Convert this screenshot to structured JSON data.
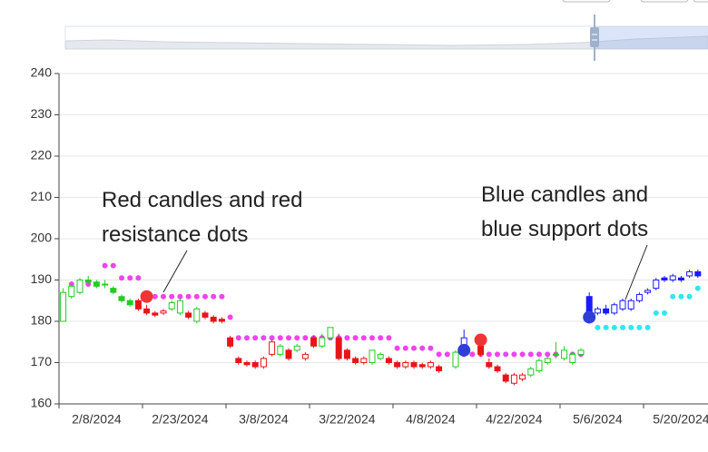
{
  "chart_data": {
    "type": "candlestick",
    "annotations": [
      {
        "lines": [
          "Red candles and red",
          "resistance dots"
        ]
      },
      {
        "lines": [
          "Blue candles and",
          "blue support dots"
        ]
      }
    ],
    "categories": [
      null,
      null,
      null,
      null,
      "2/8/2024",
      null,
      null,
      null,
      null,
      null,
      null,
      null,
      null,
      null,
      "2/23/2024",
      null,
      null,
      null,
      null,
      null,
      null,
      null,
      null,
      null,
      "3/8/2024",
      null,
      null,
      null,
      null,
      null,
      null,
      null,
      null,
      null,
      "3/22/2024",
      null,
      null,
      null,
      null,
      null,
      null,
      null,
      null,
      null,
      "4/8/2024",
      null,
      null,
      null,
      null,
      null,
      null,
      null,
      null,
      null,
      "4/22/2024",
      null,
      null,
      null,
      null,
      null,
      null,
      null,
      null,
      null,
      "5/6/2024",
      null,
      null,
      null,
      null,
      null,
      null,
      null,
      null,
      null,
      "5/20/2024",
      null,
      null
    ],
    "ylim": [
      160,
      240
    ],
    "yticks": [
      160,
      170,
      180,
      190,
      200,
      210,
      220,
      230,
      240
    ],
    "grid": true,
    "series": [
      {
        "color": "#22cc22",
        "values": [
          [
            180,
            187,
            180,
            188
          ],
          [
            186,
            188.5,
            185.5,
            189
          ],
          [
            187,
            190,
            186.5,
            190.5
          ],
          [
            190,
            189.5,
            189,
            191
          ],
          [
            189.5,
            188.5,
            188,
            190
          ],
          [
            189,
            189,
            188,
            190
          ],
          [
            188,
            187,
            186.5,
            188.5
          ],
          [
            186,
            185,
            184.5,
            186.5
          ],
          [
            185,
            184,
            183.5,
            185.5
          ],
          null,
          null,
          null,
          null,
          [
            183,
            184.5,
            182.5,
            185
          ],
          [
            182,
            185,
            181.5,
            185.5
          ],
          null,
          [
            180,
            183,
            179.5,
            183.5
          ],
          null,
          null,
          null,
          null,
          null,
          null,
          null,
          null,
          null,
          [
            172,
            174,
            171.5,
            174.5
          ],
          null,
          [
            173,
            174,
            172.5,
            174.5
          ],
          null,
          null,
          [
            174,
            176,
            173.5,
            177
          ],
          [
            176,
            178.5,
            175.5,
            178.5
          ],
          null,
          null,
          null,
          null,
          [
            170,
            173,
            169.5,
            173
          ],
          [
            171,
            172,
            170.5,
            172.5
          ],
          null,
          null,
          null,
          null,
          null,
          null,
          null,
          null,
          [
            169,
            172.5,
            168.5,
            173
          ],
          null,
          null,
          null,
          null,
          null,
          null,
          null,
          null,
          [
            167,
            168.5,
            166.5,
            169
          ],
          [
            168,
            170.5,
            167.5,
            171
          ],
          [
            170,
            171,
            169.5,
            171.5
          ],
          [
            172,
            172,
            171,
            175
          ],
          [
            171,
            173,
            170.5,
            174
          ],
          [
            170,
            172,
            169.5,
            172.5
          ],
          [
            172,
            173,
            171.5,
            173.5
          ],
          null,
          null,
          null,
          null,
          null,
          null,
          null,
          null,
          null,
          null,
          null,
          null,
          null,
          null
        ]
      },
      {
        "color": "#e8141a",
        "values": [
          null,
          null,
          null,
          null,
          null,
          null,
          null,
          null,
          null,
          [
            185,
            183,
            182.5,
            185.5
          ],
          [
            183,
            182,
            181.5,
            184
          ],
          [
            182,
            181.5,
            181,
            182.5
          ],
          [
            182,
            182.5,
            181.5,
            183
          ],
          null,
          null,
          [
            182,
            181,
            180.5,
            182.5
          ],
          null,
          [
            182,
            181,
            180.5,
            182.5
          ],
          [
            181,
            180,
            179.5,
            181.5
          ],
          [
            180.5,
            180,
            179.5,
            181
          ],
          [
            176,
            174,
            173.5,
            176.5
          ],
          [
            171,
            170,
            169.5,
            171.5
          ],
          [
            170,
            169.5,
            169,
            170.5
          ],
          [
            170,
            169,
            168.5,
            170.5
          ],
          [
            169,
            171,
            168.5,
            171.5
          ],
          [
            172,
            175,
            171.5,
            175.5
          ],
          null,
          [
            173,
            171,
            170.5,
            173.5
          ],
          null,
          [
            171,
            172,
            170.5,
            172.5
          ],
          [
            176,
            174,
            173.5,
            176.5
          ],
          null,
          null,
          [
            176,
            171,
            170.5,
            177
          ],
          [
            173,
            171,
            170.5,
            173.5
          ],
          [
            171,
            170,
            169.5,
            171.5
          ],
          [
            170,
            171,
            169.5,
            171.5
          ],
          null,
          null,
          [
            171,
            170,
            169.5,
            171.5
          ],
          [
            170,
            169,
            168.5,
            170.5
          ],
          [
            169,
            170,
            168.5,
            170.5
          ],
          [
            170,
            169,
            168.5,
            170.5
          ],
          [
            169.5,
            169,
            168.5,
            170
          ],
          [
            169,
            170,
            168.5,
            170.5
          ],
          [
            169,
            168,
            167.5,
            169.5
          ],
          null,
          null,
          null,
          null,
          [
            174,
            172,
            171.5,
            175
          ],
          [
            170,
            169,
            168.5,
            171
          ],
          [
            169,
            168,
            167.5,
            169.5
          ],
          [
            167,
            165.5,
            165,
            167.5
          ],
          [
            165,
            167,
            164.5,
            167.5
          ],
          [
            166,
            167,
            165.5,
            167.5
          ],
          null,
          null,
          null,
          null,
          null,
          null,
          null,
          null,
          null,
          null,
          null,
          null,
          null,
          null,
          null,
          null,
          null,
          null,
          null,
          null,
          null
        ]
      },
      {
        "color": "#1a1aff",
        "values": [
          null,
          null,
          null,
          null,
          null,
          null,
          null,
          null,
          null,
          null,
          null,
          null,
          null,
          null,
          null,
          null,
          null,
          null,
          null,
          null,
          null,
          null,
          null,
          null,
          null,
          null,
          null,
          null,
          null,
          null,
          null,
          null,
          null,
          null,
          null,
          null,
          null,
          null,
          null,
          null,
          null,
          null,
          null,
          null,
          null,
          null,
          null,
          null,
          [
            172,
            176,
            171.5,
            178
          ],
          null,
          null,
          null,
          null,
          null,
          null,
          null,
          null,
          null,
          null,
          null,
          null,
          null,
          null,
          [
            186,
            181.5,
            181,
            187
          ],
          [
            182,
            183,
            181.5,
            183.5
          ],
          [
            183,
            182,
            181.5,
            184
          ],
          [
            182,
            184,
            181.5,
            184.5
          ],
          [
            183,
            185,
            182.5,
            185.5
          ],
          [
            183,
            185,
            182.5,
            185.5
          ],
          [
            185,
            186.5,
            184.5,
            187
          ],
          [
            187,
            187.5,
            186.5,
            188
          ],
          [
            188,
            190,
            187.5,
            190.5
          ],
          [
            190.5,
            190,
            189.5,
            191
          ],
          [
            190,
            191,
            189.5,
            191.5
          ],
          [
            190.5,
            190,
            189.5,
            191
          ],
          [
            191,
            192,
            190.5,
            192.5
          ],
          [
            192,
            191,
            190.5,
            192.5
          ]
        ]
      }
    ],
    "dots": [
      {
        "color": "#ee44ee",
        "values": [
          null,
          189,
          189,
          189,
          189,
          193.5,
          193.5,
          190.5,
          190.5,
          190.5,
          null,
          186,
          186,
          186,
          186,
          186,
          186,
          186,
          186,
          186,
          181,
          176,
          176,
          176,
          176,
          176,
          176,
          176,
          176,
          176,
          176,
          176,
          176,
          176,
          176,
          176,
          176,
          176,
          176,
          176,
          173.5,
          173.5,
          173.5,
          173.5,
          173.5,
          172,
          172,
          172,
          172,
          172,
          172,
          172,
          172,
          172,
          172,
          172,
          172,
          172,
          172,
          172,
          172,
          172,
          172,
          null,
          null,
          null,
          null,
          null,
          null,
          null,
          null,
          null,
          null,
          null,
          null,
          null,
          null
        ]
      },
      {
        "color": "#33e6ee",
        "values": [
          null,
          null,
          null,
          null,
          null,
          null,
          null,
          null,
          null,
          null,
          null,
          null,
          null,
          null,
          null,
          null,
          null,
          null,
          null,
          null,
          null,
          null,
          null,
          null,
          null,
          null,
          null,
          null,
          null,
          null,
          null,
          null,
          null,
          null,
          null,
          null,
          null,
          null,
          null,
          null,
          null,
          null,
          null,
          null,
          null,
          null,
          null,
          null,
          null,
          null,
          null,
          null,
          null,
          null,
          null,
          null,
          null,
          null,
          null,
          null,
          null,
          null,
          null,
          null,
          178.5,
          178.5,
          178.5,
          178.5,
          178.5,
          178.5,
          178.5,
          182,
          182,
          186,
          186,
          186,
          188
        ]
      }
    ],
    "signals": [
      {
        "color": "#f03535",
        "values": [
          null,
          null,
          null,
          null,
          null,
          null,
          null,
          null,
          null,
          null,
          186,
          null,
          null,
          null,
          null,
          null,
          null,
          null,
          null,
          null,
          null,
          null,
          null,
          null,
          null,
          null,
          null,
          null,
          null,
          null,
          null,
          null,
          null,
          null,
          null,
          null,
          null,
          null,
          null,
          null,
          null,
          null,
          null,
          null,
          null,
          null,
          null,
          null,
          null,
          null,
          175.5,
          null,
          null,
          null,
          null,
          null,
          null,
          null,
          null,
          null,
          null,
          null,
          null,
          null,
          null,
          null,
          null,
          null,
          null,
          null,
          null,
          null,
          null,
          null,
          null,
          null,
          null
        ]
      },
      {
        "color": "#2f3fd6",
        "values": [
          null,
          null,
          null,
          null,
          null,
          null,
          null,
          null,
          null,
          null,
          null,
          null,
          null,
          null,
          null,
          null,
          null,
          null,
          null,
          null,
          null,
          null,
          null,
          null,
          null,
          null,
          null,
          null,
          null,
          null,
          null,
          null,
          null,
          null,
          null,
          null,
          null,
          null,
          null,
          null,
          null,
          null,
          null,
          null,
          null,
          null,
          null,
          null,
          173,
          null,
          null,
          null,
          null,
          null,
          null,
          null,
          null,
          null,
          null,
          null,
          null,
          null,
          null,
          181,
          null,
          null,
          null,
          null,
          null,
          null,
          null,
          null,
          null,
          null,
          null,
          null,
          null
        ]
      }
    ]
  }
}
